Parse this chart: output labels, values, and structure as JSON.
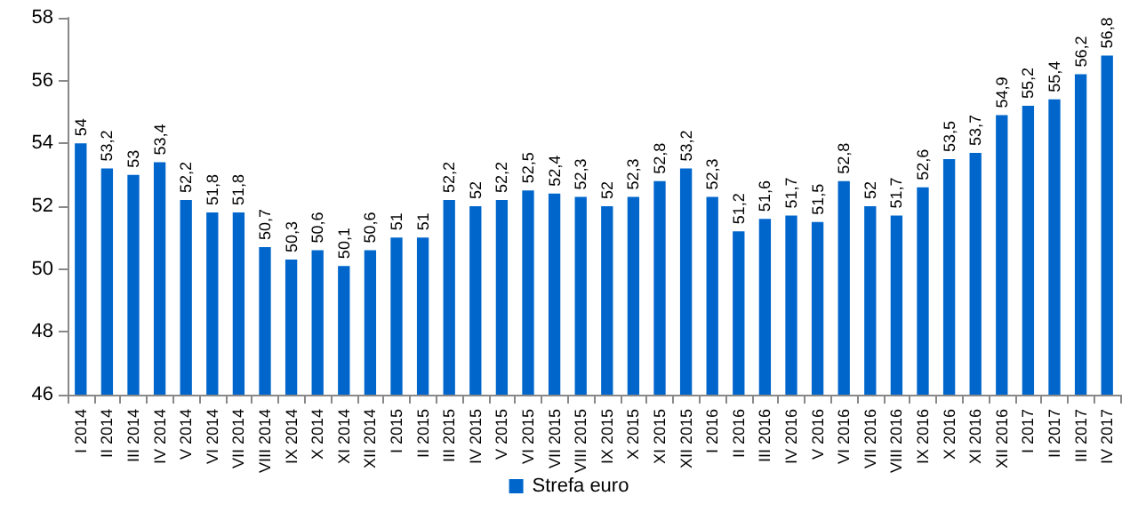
{
  "chart_data": {
    "type": "bar",
    "categories": [
      "I 2014",
      "II 2014",
      "III 2014",
      "IV 2014",
      "V 2014",
      "VI 2014",
      "VII 2014",
      "VIII 2014",
      "IX 2014",
      "X 2014",
      "XI 2014",
      "XII 2014",
      "I 2015",
      "II 2015",
      "III 2015",
      "IV 2015",
      "V 2015",
      "VI 2015",
      "VII 2015",
      "VIII 2015",
      "IX 2015",
      "X 2015",
      "XI 2015",
      "XII 2015",
      "I 2016",
      "II 2016",
      "III 2016",
      "IV 2016",
      "V 2016",
      "VI 2016",
      "VII 2016",
      "VIII 2016",
      "IX 2016",
      "X 2016",
      "XI 2016",
      "XII 2016",
      "I 2017",
      "II 2017",
      "III 2017",
      "IV 2017"
    ],
    "series": [
      {
        "name": "Strefa euro",
        "color": "#0066cc",
        "values": [
          54,
          53.2,
          53,
          53.4,
          52.2,
          51.8,
          51.8,
          50.7,
          50.3,
          50.6,
          50.1,
          50.6,
          51,
          51,
          52.2,
          52,
          52.2,
          52.5,
          52.4,
          52.3,
          52,
          52.3,
          52.8,
          53.2,
          52.3,
          51.2,
          51.6,
          51.7,
          51.5,
          52.8,
          52,
          51.7,
          52.6,
          53.5,
          53.7,
          54.9,
          55.2,
          55.4,
          56.2,
          56.8
        ],
        "value_labels": [
          "54",
          "53,2",
          "53",
          "53,4",
          "52,2",
          "51,8",
          "51,8",
          "50,7",
          "50,3",
          "50,6",
          "50,1",
          "50,6",
          "51",
          "51",
          "52,2",
          "52",
          "52,2",
          "52,5",
          "52,4",
          "52,3",
          "52",
          "52,3",
          "52,8",
          "53,2",
          "52,3",
          "51,2",
          "51,6",
          "51,7",
          "51,5",
          "52,8",
          "52",
          "51,7",
          "52,6",
          "53,5",
          "53,7",
          "54,9",
          "55,2",
          "55,4",
          "56,2",
          "56,8"
        ]
      }
    ],
    "ylim": [
      46,
      58
    ],
    "yticks": [
      46,
      48,
      50,
      52,
      54,
      56,
      58
    ],
    "grid": false,
    "legend": "bottom"
  }
}
